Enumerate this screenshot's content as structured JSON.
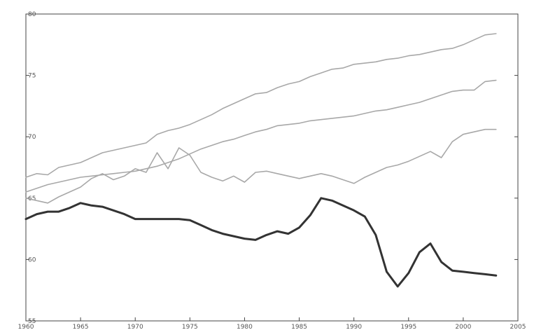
{
  "chart_data": {
    "type": "line",
    "title": "",
    "xlabel": "",
    "ylabel": "",
    "xlim": [
      1960,
      2005
    ],
    "ylim": [
      55,
      80
    ],
    "x_ticks": [
      1960,
      1965,
      1970,
      1975,
      1980,
      1985,
      1990,
      1995,
      2000,
      2005
    ],
    "y_ticks": [
      55,
      60,
      65,
      70,
      75,
      80
    ],
    "x_tick_labels": [
      "1960",
      "1965",
      "1970",
      "1975",
      "1980",
      "1985",
      "1990",
      "1995",
      "2000",
      "2005"
    ],
    "y_tick_labels": [
      "55",
      "60",
      "65",
      "70",
      "75",
      "80"
    ],
    "grid": false,
    "legend": "none",
    "colors": {
      "light_series": "#a8a8a8",
      "dark_series": "#333333",
      "axis": "#444444"
    },
    "series": [
      {
        "style": "light",
        "x": [
          1960,
          1961,
          1962,
          1963,
          1964,
          1965,
          1966,
          1967,
          1968,
          1969,
          1970,
          1971,
          1972,
          1973,
          1974,
          1975,
          1976,
          1977,
          1978,
          1979,
          1980,
          1981,
          1982,
          1983,
          1984,
          1985,
          1986,
          1987,
          1988,
          1989,
          1990,
          1991,
          1992,
          1993,
          1994,
          1995,
          1996,
          1997,
          1998,
          1999,
          2000,
          2001,
          2002,
          2003
        ],
        "values": [
          66.7,
          67.0,
          66.9,
          67.5,
          67.7,
          67.9,
          68.3,
          68.7,
          68.9,
          69.1,
          69.3,
          69.5,
          70.2,
          70.5,
          70.7,
          71.0,
          71.4,
          71.8,
          72.3,
          72.7,
          73.1,
          73.5,
          73.6,
          74.0,
          74.3,
          74.5,
          74.9,
          75.2,
          75.5,
          75.6,
          75.9,
          76.0,
          76.1,
          76.3,
          76.4,
          76.6,
          76.7,
          76.9,
          77.1,
          77.2,
          77.5,
          77.9,
          78.3,
          78.4
        ]
      },
      {
        "style": "light",
        "x": [
          1960,
          1961,
          1962,
          1963,
          1964,
          1965,
          1966,
          1967,
          1968,
          1969,
          1970,
          1971,
          1972,
          1973,
          1974,
          1975,
          1976,
          1977,
          1978,
          1979,
          1980,
          1981,
          1982,
          1983,
          1984,
          1985,
          1986,
          1987,
          1988,
          1989,
          1990,
          1991,
          1992,
          1993,
          1994,
          1995,
          1996,
          1997,
          1998,
          1999,
          2000,
          2001,
          2002,
          2003
        ],
        "values": [
          65.5,
          65.8,
          66.1,
          66.3,
          66.5,
          66.7,
          66.8,
          66.9,
          67.0,
          67.1,
          67.2,
          67.4,
          67.6,
          67.9,
          68.2,
          68.6,
          69.0,
          69.3,
          69.6,
          69.8,
          70.1,
          70.4,
          70.6,
          70.9,
          71.0,
          71.1,
          71.3,
          71.4,
          71.5,
          71.6,
          71.7,
          71.9,
          72.1,
          72.2,
          72.4,
          72.6,
          72.8,
          73.1,
          73.4,
          73.7,
          73.8,
          73.8,
          74.5,
          74.6
        ]
      },
      {
        "style": "light",
        "x": [
          1960,
          1961,
          1962,
          1963,
          1964,
          1965,
          1966,
          1967,
          1968,
          1969,
          1970,
          1971,
          1972,
          1973,
          1974,
          1975,
          1976,
          1977,
          1978,
          1979,
          1980,
          1981,
          1982,
          1983,
          1984,
          1985,
          1986,
          1987,
          1988,
          1989,
          1990,
          1991,
          1992,
          1993,
          1994,
          1995,
          1996,
          1997,
          1998,
          1999,
          2000,
          2001,
          2002,
          2003
        ],
        "values": [
          65.0,
          64.8,
          64.6,
          65.1,
          65.5,
          65.9,
          66.6,
          67.0,
          66.5,
          66.8,
          67.4,
          67.1,
          68.7,
          67.4,
          69.1,
          68.5,
          67.1,
          66.7,
          66.4,
          66.8,
          66.3,
          67.1,
          67.2,
          67.0,
          66.8,
          66.6,
          66.8,
          67.0,
          66.8,
          66.5,
          66.2,
          66.7,
          67.1,
          67.5,
          67.7,
          68.0,
          68.4,
          68.8,
          68.3,
          69.6,
          70.2,
          70.4,
          70.6,
          70.6
        ]
      },
      {
        "style": "dark",
        "x": [
          1960,
          1961,
          1962,
          1963,
          1964,
          1965,
          1966,
          1967,
          1968,
          1969,
          1970,
          1971,
          1972,
          1973,
          1974,
          1975,
          1976,
          1977,
          1978,
          1979,
          1980,
          1981,
          1982,
          1983,
          1984,
          1985,
          1986,
          1987,
          1988,
          1989,
          1990,
          1991,
          1992,
          1993,
          1994,
          1995,
          1996,
          1997,
          1998,
          1999,
          2000,
          2001,
          2002,
          2003
        ],
        "values": [
          63.3,
          63.7,
          63.9,
          63.9,
          64.2,
          64.6,
          64.4,
          64.3,
          64.0,
          63.7,
          63.3,
          63.3,
          63.3,
          63.3,
          63.3,
          63.2,
          62.8,
          62.4,
          62.1,
          61.9,
          61.7,
          61.6,
          62.0,
          62.3,
          62.1,
          62.6,
          63.6,
          65.0,
          64.8,
          64.4,
          64.0,
          63.5,
          62.0,
          59.0,
          57.8,
          58.9,
          60.6,
          61.3,
          59.8,
          59.1,
          59.0,
          58.9,
          58.8,
          58.7
        ]
      }
    ]
  }
}
